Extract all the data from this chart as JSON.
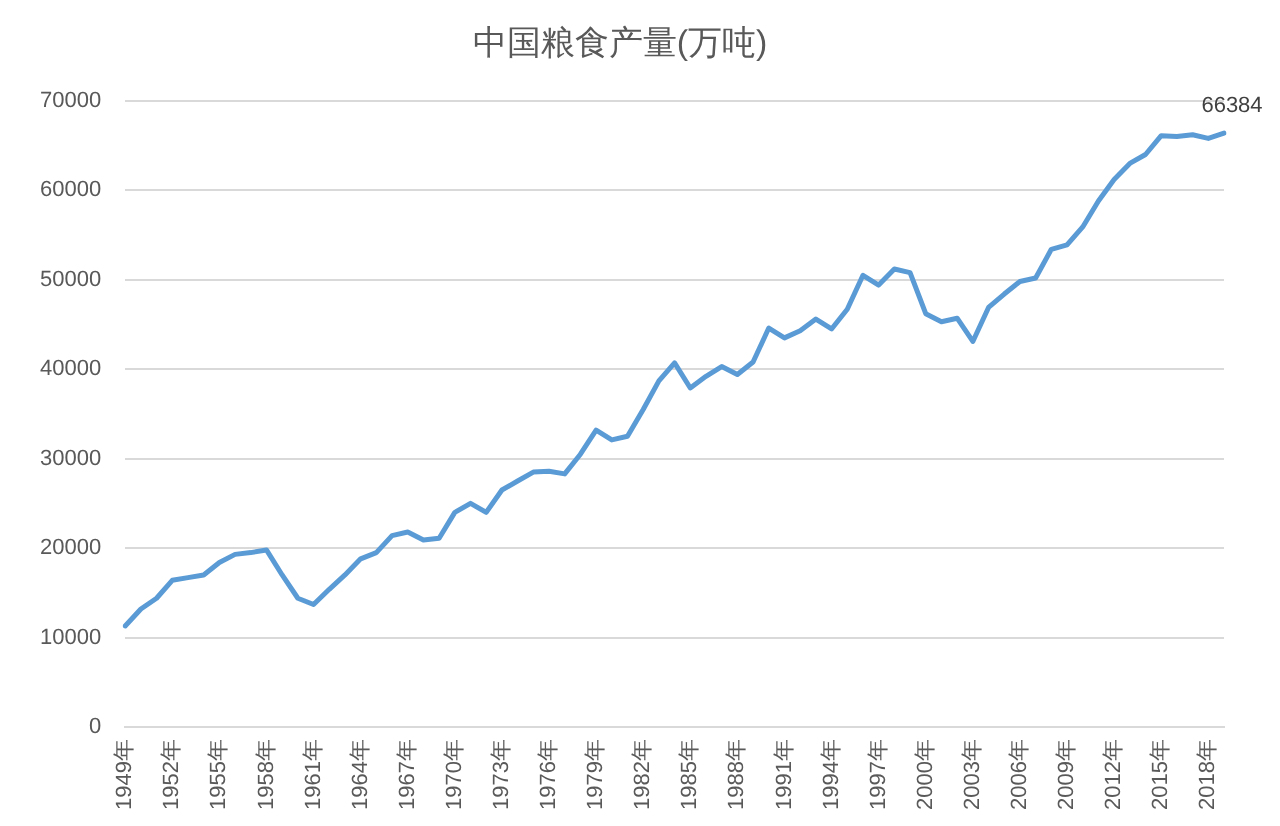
{
  "chart_data": {
    "type": "line",
    "title": "中国粮食产量(万吨)",
    "categories": [
      "1949年",
      null,
      null,
      "1952年",
      null,
      null,
      "1955年",
      null,
      null,
      "1958年",
      null,
      null,
      "1961年",
      null,
      null,
      "1964年",
      null,
      null,
      "1967年",
      null,
      null,
      "1970年",
      null,
      null,
      "1973年",
      null,
      null,
      "1976年",
      null,
      null,
      "1979年",
      null,
      null,
      "1982年",
      null,
      null,
      "1985年",
      null,
      null,
      "1988年",
      null,
      null,
      "1991年",
      null,
      null,
      "1994年",
      null,
      null,
      "1997年",
      null,
      null,
      "2000年",
      null,
      null,
      "2003年",
      null,
      null,
      "2006年",
      null,
      null,
      "2009年",
      null,
      null,
      "2012年",
      null,
      null,
      "2015年",
      null,
      null,
      "2018年",
      null
    ],
    "series": [
      {
        "color": "#5b9bd5",
        "values": [
          11300,
          13200,
          14400,
          16400,
          16700,
          17000,
          18400,
          19300,
          19500,
          19800,
          17000,
          14400,
          13700,
          15400,
          17000,
          18800,
          19500,
          21400,
          21800,
          20900,
          21100,
          24000,
          25000,
          24000,
          26500,
          27500,
          28500,
          28600,
          28300,
          30500,
          33200,
          32100,
          32500,
          35500,
          38700,
          40700,
          37900,
          39200,
          40300,
          39400,
          40800,
          44600,
          43500,
          44300,
          45600,
          44500,
          46700,
          50500,
          49400,
          51200,
          50800,
          46200,
          45300,
          45700,
          43100,
          46900,
          48400,
          49800,
          50200,
          53400,
          53900,
          55900,
          58800,
          61200,
          63000,
          64000,
          66100,
          66000,
          66200,
          65800,
          66384
        ],
        "value_labels": [
          null,
          null,
          null,
          null,
          null,
          null,
          null,
          null,
          null,
          null,
          null,
          null,
          null,
          null,
          null,
          null,
          null,
          null,
          null,
          null,
          null,
          null,
          null,
          null,
          null,
          null,
          null,
          null,
          null,
          null,
          null,
          null,
          null,
          null,
          null,
          null,
          null,
          null,
          null,
          null,
          null,
          null,
          null,
          null,
          null,
          null,
          null,
          null,
          null,
          null,
          null,
          null,
          null,
          null,
          null,
          null,
          null,
          null,
          null,
          null,
          null,
          null,
          null,
          null,
          null,
          null,
          null,
          null,
          null,
          null,
          "66384"
        ]
      }
    ],
    "ylim": [
      0,
      70000
    ],
    "yticks": [
      0,
      10000,
      20000,
      30000,
      40000,
      50000,
      60000,
      70000
    ],
    "grid": "y",
    "legend": false,
    "marker": "none",
    "line_style": "solid"
  }
}
